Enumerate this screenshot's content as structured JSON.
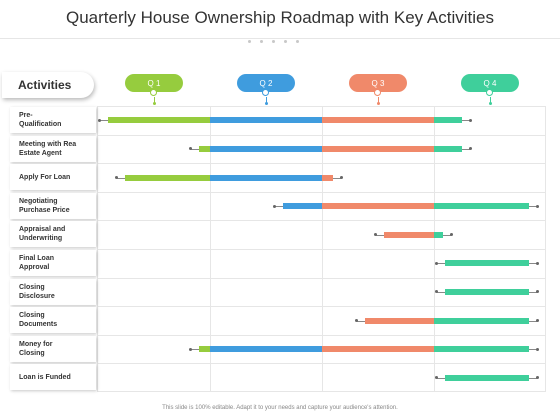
{
  "title": "Quarterly House Ownership Roadmap with Key Activities",
  "activities_label": "Activities",
  "footer": "This slide is 100% editable. Adapt it to your needs and capture your audience's attention.",
  "colors": {
    "q1": "#96cc3e",
    "q2": "#3f9cde",
    "q3": "#f0896a",
    "q4": "#3fcf9b"
  },
  "quarters": [
    "Q 1",
    "Q 2",
    "Q 3",
    "Q 4"
  ],
  "activities": [
    {
      "label": "Pre-\nQualification",
      "start": 0.1,
      "end": 3.25
    },
    {
      "label": "Meeting with Rea\nEstate Agent",
      "start": 0.9,
      "end": 3.25
    },
    {
      "label": "Apply For Loan",
      "start": 0.25,
      "end": 2.1
    },
    {
      "label": "Negotiating\nPurchase Price",
      "start": 1.65,
      "end": 3.85
    },
    {
      "label": "Appraisal and\nUnderwriting",
      "start": 2.55,
      "end": 3.08
    },
    {
      "label": "Final Loan\nApproval",
      "start": 3.1,
      "end": 3.85
    },
    {
      "label": "Closing\nDisclosure",
      "start": 3.1,
      "end": 3.85
    },
    {
      "label": "Closing\nDocuments",
      "start": 2.38,
      "end": 3.85
    },
    {
      "label": "Money for\nClosing",
      "start": 0.9,
      "end": 3.85
    },
    {
      "label": "Loan is Funded",
      "start": 3.1,
      "end": 3.85
    }
  ]
}
